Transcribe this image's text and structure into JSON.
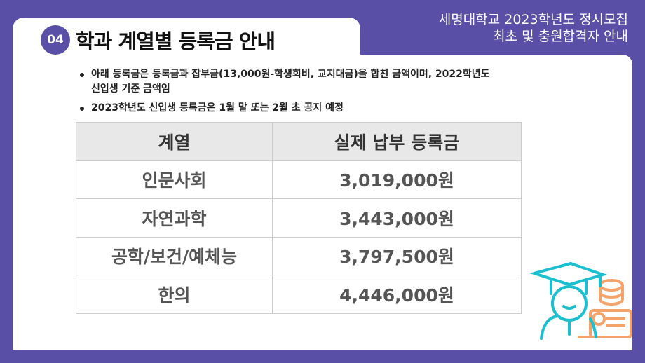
{
  "header": {
    "line1": "세명대학교 2023학년도 정시모집",
    "line2": "최초 및 충원합격자 안내"
  },
  "section": {
    "number": "04",
    "title": "학과 계열별 등록금 안내"
  },
  "notes": [
    "아래 등록금은 등록금과 잡부금(13,000원-학생회비, 교지대금)을 합친 금액이며, 2022학년도 신입생 기준 금액임",
    "2023학년도 신입생 등록금은 1월 말 또는 2월 초 공지 예정"
  ],
  "table": {
    "headers": [
      "계열",
      "실제 납부 등록금"
    ],
    "rows": [
      [
        "인문사회",
        "3,019,000원"
      ],
      [
        "자연과학",
        "3,443,000원"
      ],
      [
        "공학/보건/예체능",
        "3,797,500원"
      ],
      [
        "한의",
        "4,446,000원"
      ]
    ]
  },
  "colors": {
    "brand": "#5a4fa6",
    "illustration_primary": "#1bbfd0",
    "illustration_secondary": "#f4a46a"
  }
}
